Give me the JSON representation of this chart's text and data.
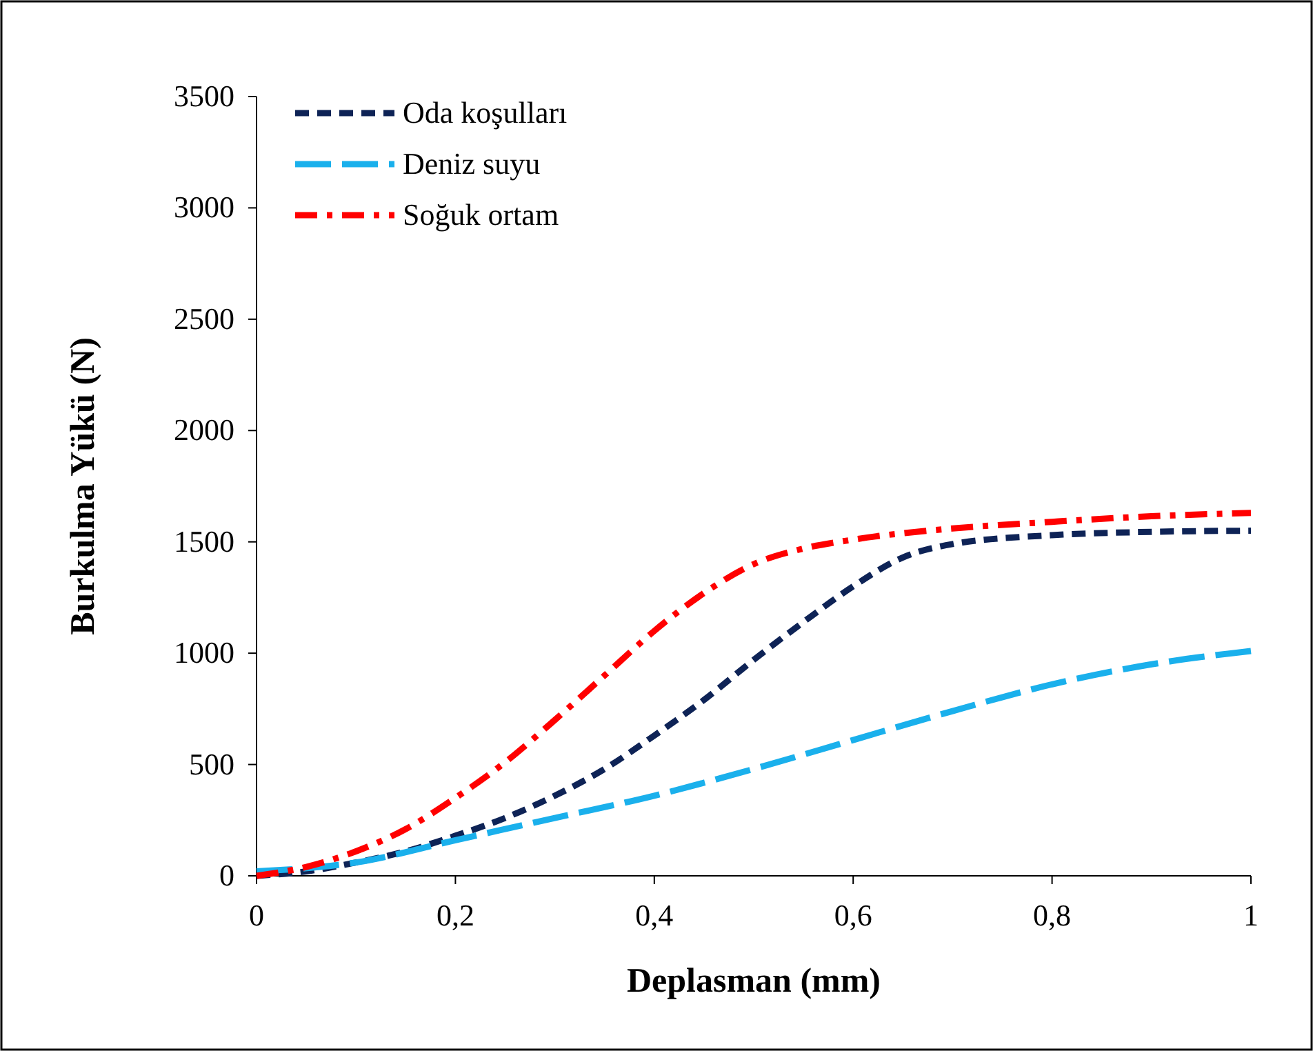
{
  "chart_data": {
    "type": "line",
    "xlabel": "Deplasman (mm)",
    "ylabel": "Burkulma Yükü (N)",
    "xlim": [
      0,
      1
    ],
    "xticks": [
      0,
      {
        "value": 0.2,
        "label": "0,2"
      },
      {
        "value": 0.4,
        "label": "0,4"
      },
      {
        "value": 0.6,
        "label": "0,6"
      },
      {
        "value": 0.8,
        "label": "0,8"
      },
      1
    ],
    "ylim": [
      0,
      3500
    ],
    "yticks": [
      0,
      500,
      1000,
      1500,
      2000,
      2500,
      3000,
      3500
    ],
    "grid": false,
    "legend": "top left",
    "series": [
      {
        "name": "Oda koşulları",
        "color": "#0e2356",
        "line_style": "dashed",
        "x": [
          0,
          0.05,
          0.1,
          0.15,
          0.2,
          0.25,
          0.3,
          0.35,
          0.4,
          0.45,
          0.5,
          0.55,
          0.6,
          0.65,
          0.7,
          0.8,
          0.9,
          1
        ],
        "values": [
          0,
          20,
          60,
          110,
          180,
          260,
          360,
          480,
          630,
          790,
          970,
          1140,
          1300,
          1430,
          1490,
          1530,
          1545,
          1550
        ]
      },
      {
        "name": "Deniz suyu",
        "color": "#1ab0ec",
        "line_style": "longdash",
        "x": [
          0,
          0.1,
          0.2,
          0.3,
          0.4,
          0.5,
          0.6,
          0.7,
          0.8,
          0.9,
          1
        ],
        "values": [
          20,
          60,
          160,
          260,
          360,
          480,
          610,
          740,
          860,
          950,
          1010
        ]
      },
      {
        "name": "Soğuk ortam",
        "color": "#ff0000",
        "line_style": "dashdot",
        "x": [
          0,
          0.05,
          0.1,
          0.15,
          0.2,
          0.25,
          0.3,
          0.35,
          0.4,
          0.45,
          0.5,
          0.55,
          0.6,
          0.7,
          0.8,
          0.9,
          1
        ],
        "values": [
          0,
          40,
          110,
          210,
          350,
          510,
          700,
          900,
          1100,
          1270,
          1400,
          1470,
          1510,
          1560,
          1590,
          1615,
          1630
        ]
      }
    ]
  }
}
